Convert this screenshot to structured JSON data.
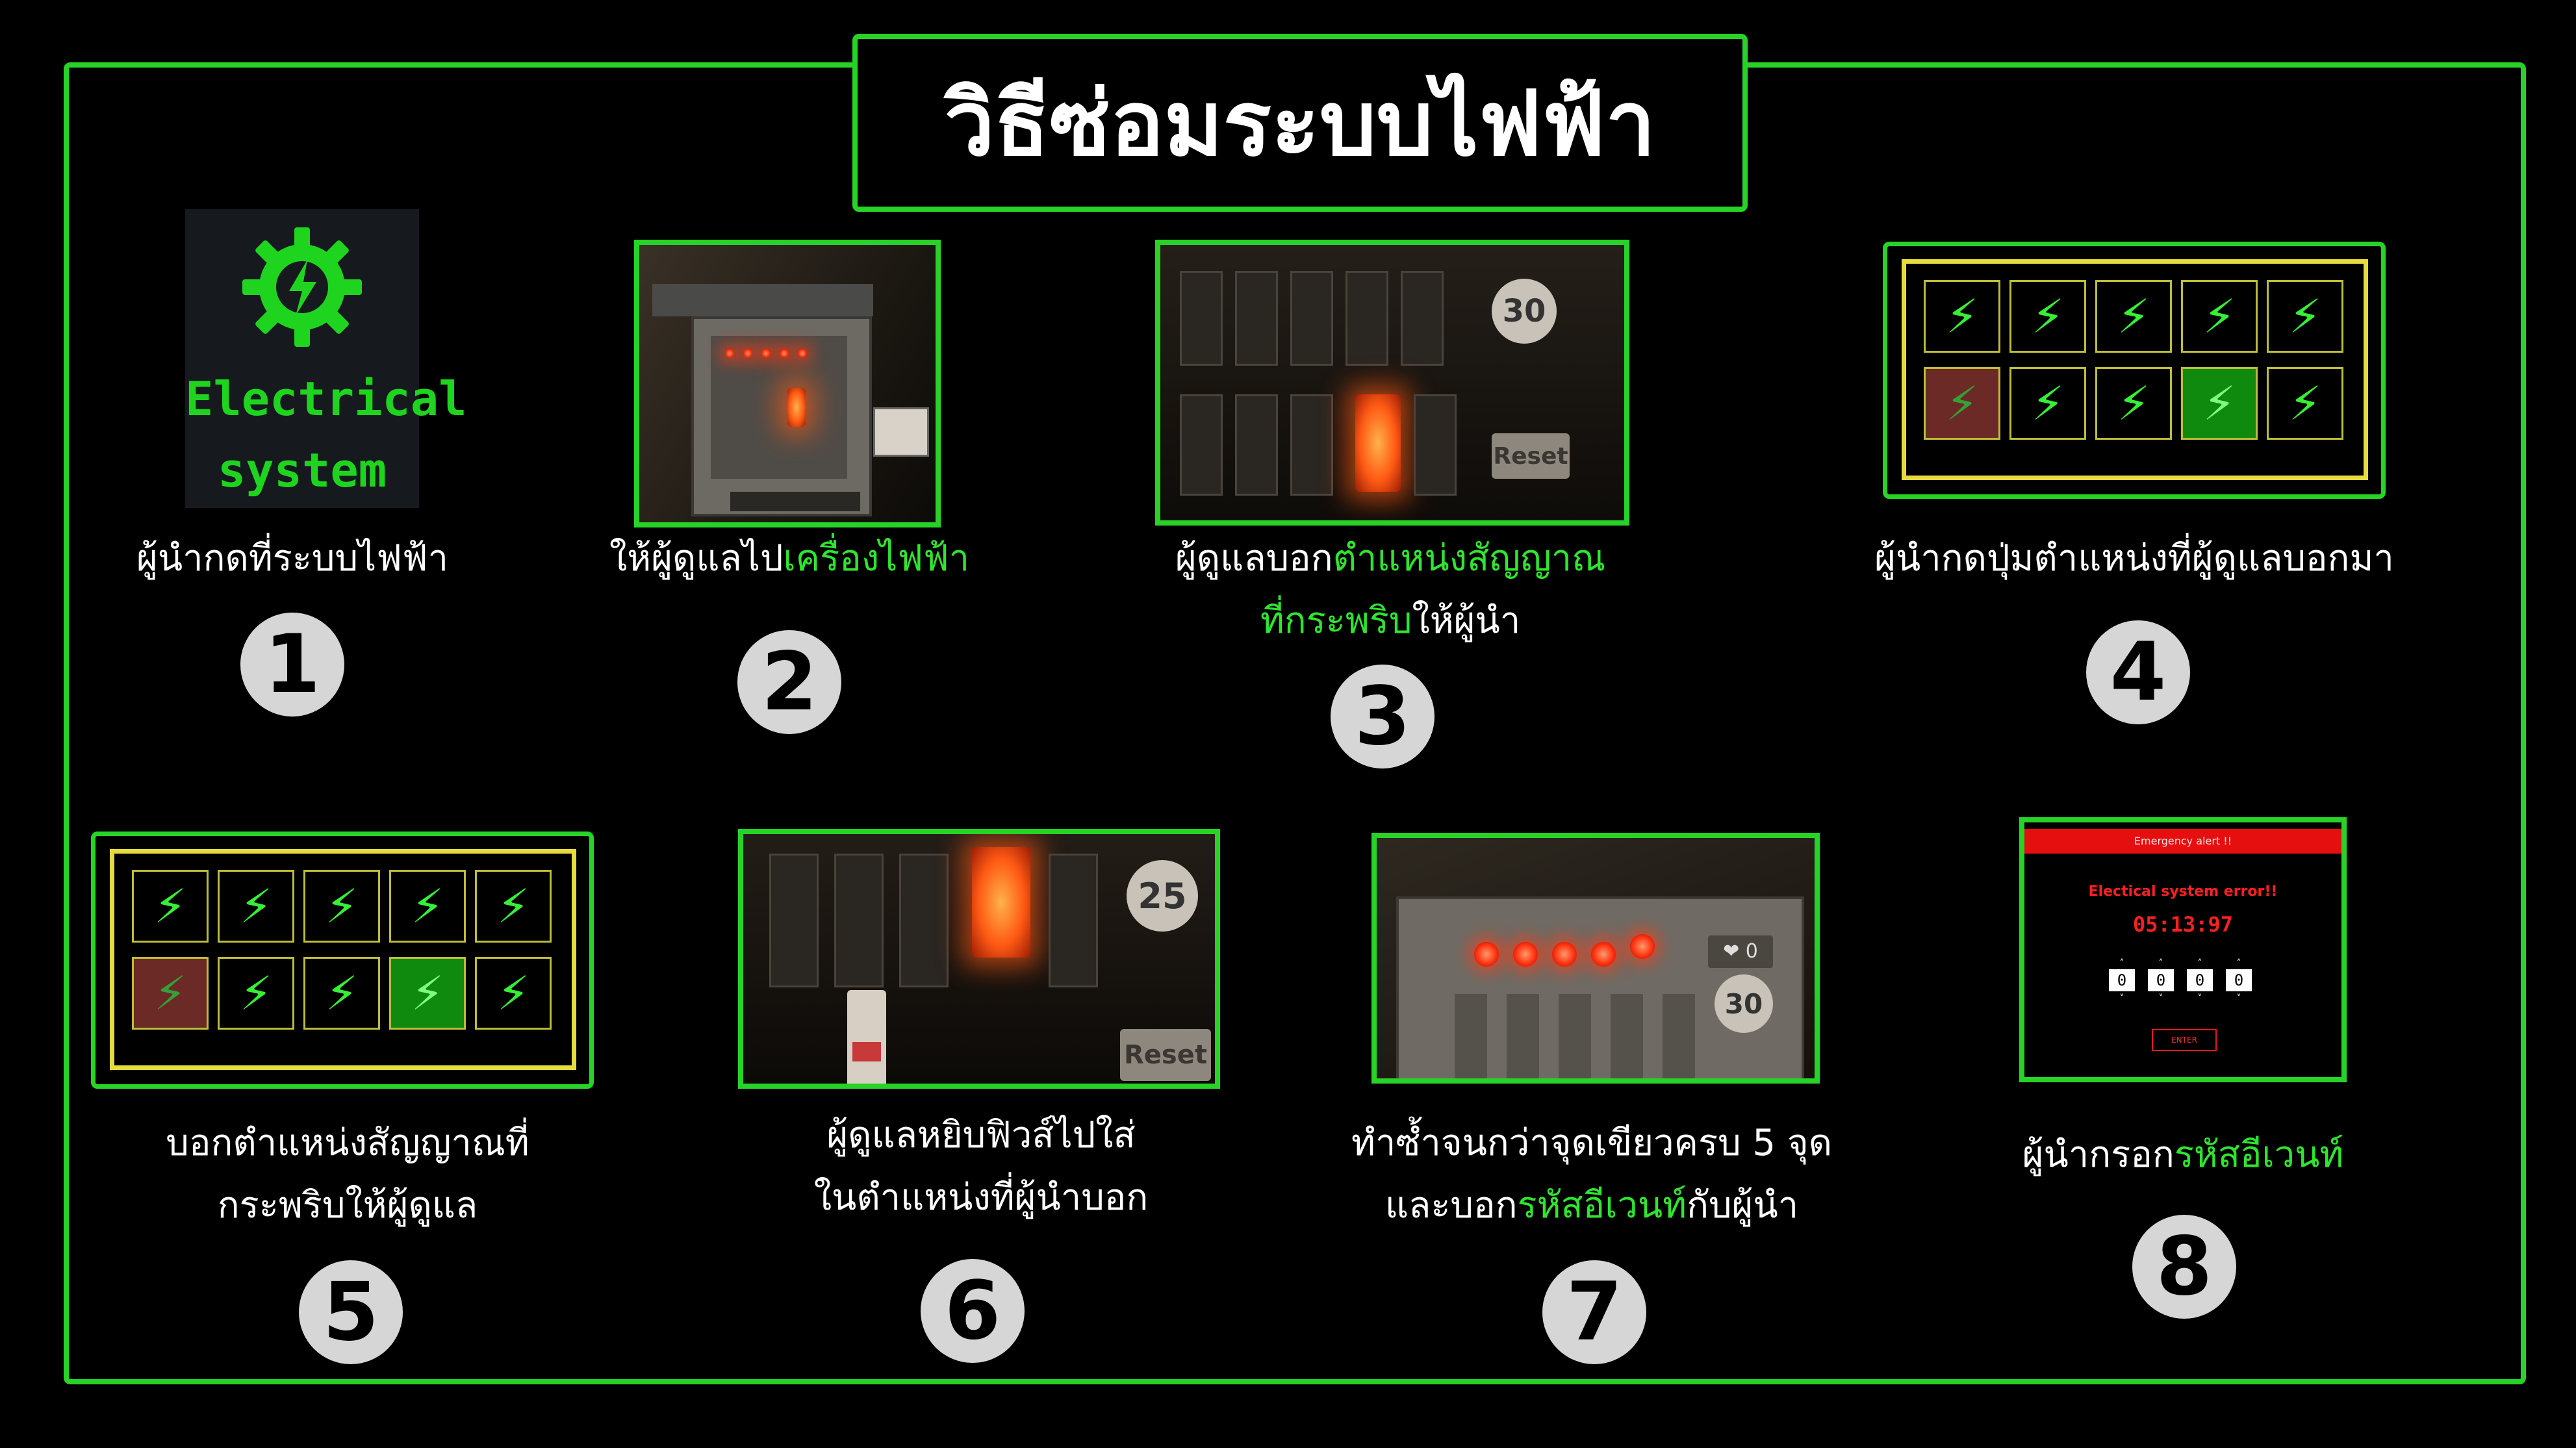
{
  "title": "วิธีซ่อมระบบไฟฟ้า",
  "colors": {
    "accent_green": "#27d327",
    "highlight_green": "#2ee62e",
    "yellow_border": "#e6dc3c",
    "alert_red": "#e60f0f"
  },
  "icon_box": {
    "name": "gear-lightning-icon",
    "line1": "Electrical",
    "line2": "system"
  },
  "steps": [
    {
      "number": "1",
      "caption": "ผู้นำกดที่ระบบไฟฟ้า"
    },
    {
      "number": "2",
      "caption_pre": "ให้ผู้ดูแลไป",
      "caption_hl": "เครื่องไฟฟ้า"
    },
    {
      "number": "3",
      "line1_pre": "ผู้ดูแลบอก",
      "line1_hl": "ตำแหน่งสัญญาณ",
      "line2_hl": "ที่กระพริบ",
      "line2_post": "ให้ผู้นำ"
    },
    {
      "number": "4",
      "caption": "ผู้นำกดปุ่มตำแหน่งที่ผู้ดูแลบอกมา"
    },
    {
      "number": "5",
      "line1": "บอกตำแหน่งสัญญาณที่",
      "line2": "กระพริบให้ผู้ดูแล"
    },
    {
      "number": "6",
      "line1": "ผู้ดูแลหยิบฟิวส์ไปใส่",
      "line2": "ในตำแหน่งที่ผู้นำบอก"
    },
    {
      "number": "7",
      "line1": "ทำซ้ำจนกว่าจุดเขียวครบ 5 จุด",
      "line2_pre": "และบอก",
      "line2_hl": "รหัสอีเวนท์",
      "line2_post": "กับผู้นำ"
    },
    {
      "number": "8",
      "caption_pre": "ผู้นำกรอก",
      "caption_hl": "รหัสอีเวนท์"
    }
  ],
  "screens": {
    "step3_badge": "30",
    "step3_reset": "Reset",
    "step6_badge": "25",
    "step6_reset": "Reset",
    "step7_badge": "30",
    "step7_heart_count": "0"
  },
  "emergency": {
    "header": "Emergency alert !!",
    "message": "Electical system error!!",
    "timer": "05:13:97",
    "digits": [
      "0",
      "0",
      "0",
      "0"
    ],
    "enter_label": "ENTER"
  }
}
